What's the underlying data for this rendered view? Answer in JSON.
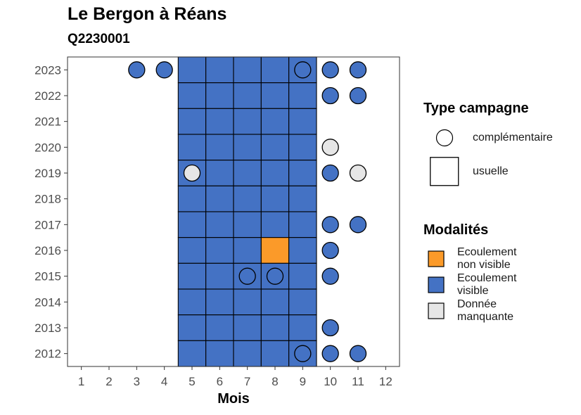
{
  "chart_data": {
    "type": "heatmap",
    "title": "Le Bergon à Réans",
    "subtitle": "Q2230001",
    "xlabel": "Mois",
    "ylabel": "",
    "x_ticks": [
      1,
      2,
      3,
      4,
      5,
      6,
      7,
      8,
      9,
      10,
      11,
      12
    ],
    "y_ticks": [
      2012,
      2013,
      2014,
      2015,
      2016,
      2017,
      2018,
      2019,
      2020,
      2021,
      2022,
      2023
    ],
    "xlim": [
      0.5,
      12.5
    ],
    "ylim": [
      2011.5,
      2023.5
    ],
    "grid": false,
    "colors": {
      "Ecoulement non visible": "#fb9a29",
      "Ecoulement visible": "#4472c4",
      "Donnée manquante": "#e6e6e6"
    },
    "usual_campaign_months": [
      5,
      6,
      7,
      8,
      9
    ],
    "observations": [
      {
        "year": 2023,
        "month": 3,
        "campaign": "complémentaire",
        "modalite": "Ecoulement visible"
      },
      {
        "year": 2023,
        "month": 4,
        "campaign": "complémentaire",
        "modalite": "Ecoulement visible"
      },
      {
        "year": 2023,
        "month": 5,
        "campaign": "usuelle",
        "modalite": "Ecoulement visible"
      },
      {
        "year": 2023,
        "month": 6,
        "campaign": "usuelle",
        "modalite": "Ecoulement visible"
      },
      {
        "year": 2023,
        "month": 7,
        "campaign": "usuelle",
        "modalite": "Ecoulement visible"
      },
      {
        "year": 2023,
        "month": 8,
        "campaign": "usuelle",
        "modalite": "Ecoulement visible"
      },
      {
        "year": 2023,
        "month": 9,
        "campaign": "usuelle",
        "modalite": "Ecoulement visible"
      },
      {
        "year": 2023,
        "month": 9,
        "campaign": "complémentaire",
        "modalite": "Ecoulement visible"
      },
      {
        "year": 2023,
        "month": 10,
        "campaign": "complémentaire",
        "modalite": "Ecoulement visible"
      },
      {
        "year": 2023,
        "month": 11,
        "campaign": "complémentaire",
        "modalite": "Ecoulement visible"
      },
      {
        "year": 2022,
        "month": 5,
        "campaign": "usuelle",
        "modalite": "Ecoulement visible"
      },
      {
        "year": 2022,
        "month": 6,
        "campaign": "usuelle",
        "modalite": "Ecoulement visible"
      },
      {
        "year": 2022,
        "month": 7,
        "campaign": "usuelle",
        "modalite": "Ecoulement visible"
      },
      {
        "year": 2022,
        "month": 8,
        "campaign": "usuelle",
        "modalite": "Ecoulement visible"
      },
      {
        "year": 2022,
        "month": 9,
        "campaign": "usuelle",
        "modalite": "Ecoulement visible"
      },
      {
        "year": 2022,
        "month": 10,
        "campaign": "complémentaire",
        "modalite": "Ecoulement visible"
      },
      {
        "year": 2022,
        "month": 11,
        "campaign": "complémentaire",
        "modalite": "Ecoulement visible"
      },
      {
        "year": 2021,
        "month": 5,
        "campaign": "usuelle",
        "modalite": "Ecoulement visible"
      },
      {
        "year": 2021,
        "month": 6,
        "campaign": "usuelle",
        "modalite": "Ecoulement visible"
      },
      {
        "year": 2021,
        "month": 7,
        "campaign": "usuelle",
        "modalite": "Ecoulement visible"
      },
      {
        "year": 2021,
        "month": 8,
        "campaign": "usuelle",
        "modalite": "Ecoulement visible"
      },
      {
        "year": 2021,
        "month": 9,
        "campaign": "usuelle",
        "modalite": "Ecoulement visible"
      },
      {
        "year": 2020,
        "month": 5,
        "campaign": "usuelle",
        "modalite": "Ecoulement visible"
      },
      {
        "year": 2020,
        "month": 6,
        "campaign": "usuelle",
        "modalite": "Ecoulement visible"
      },
      {
        "year": 2020,
        "month": 7,
        "campaign": "usuelle",
        "modalite": "Ecoulement visible"
      },
      {
        "year": 2020,
        "month": 8,
        "campaign": "usuelle",
        "modalite": "Ecoulement visible"
      },
      {
        "year": 2020,
        "month": 9,
        "campaign": "usuelle",
        "modalite": "Ecoulement visible"
      },
      {
        "year": 2020,
        "month": 10,
        "campaign": "complémentaire",
        "modalite": "Donnée manquante"
      },
      {
        "year": 2019,
        "month": 5,
        "campaign": "usuelle",
        "modalite": "Ecoulement visible"
      },
      {
        "year": 2019,
        "month": 5,
        "campaign": "complémentaire",
        "modalite": "Donnée manquante"
      },
      {
        "year": 2019,
        "month": 6,
        "campaign": "usuelle",
        "modalite": "Ecoulement visible"
      },
      {
        "year": 2019,
        "month": 7,
        "campaign": "usuelle",
        "modalite": "Ecoulement visible"
      },
      {
        "year": 2019,
        "month": 8,
        "campaign": "usuelle",
        "modalite": "Ecoulement visible"
      },
      {
        "year": 2019,
        "month": 9,
        "campaign": "usuelle",
        "modalite": "Ecoulement visible"
      },
      {
        "year": 2019,
        "month": 10,
        "campaign": "complémentaire",
        "modalite": "Ecoulement visible"
      },
      {
        "year": 2019,
        "month": 11,
        "campaign": "complémentaire",
        "modalite": "Donnée manquante"
      },
      {
        "year": 2018,
        "month": 5,
        "campaign": "usuelle",
        "modalite": "Ecoulement visible"
      },
      {
        "year": 2018,
        "month": 6,
        "campaign": "usuelle",
        "modalite": "Ecoulement visible"
      },
      {
        "year": 2018,
        "month": 7,
        "campaign": "usuelle",
        "modalite": "Ecoulement visible"
      },
      {
        "year": 2018,
        "month": 8,
        "campaign": "usuelle",
        "modalite": "Ecoulement visible"
      },
      {
        "year": 2018,
        "month": 9,
        "campaign": "usuelle",
        "modalite": "Ecoulement visible"
      },
      {
        "year": 2017,
        "month": 5,
        "campaign": "usuelle",
        "modalite": "Ecoulement visible"
      },
      {
        "year": 2017,
        "month": 6,
        "campaign": "usuelle",
        "modalite": "Ecoulement visible"
      },
      {
        "year": 2017,
        "month": 7,
        "campaign": "usuelle",
        "modalite": "Ecoulement visible"
      },
      {
        "year": 2017,
        "month": 8,
        "campaign": "usuelle",
        "modalite": "Ecoulement visible"
      },
      {
        "year": 2017,
        "month": 9,
        "campaign": "usuelle",
        "modalite": "Ecoulement visible"
      },
      {
        "year": 2017,
        "month": 10,
        "campaign": "complémentaire",
        "modalite": "Ecoulement visible"
      },
      {
        "year": 2017,
        "month": 11,
        "campaign": "complémentaire",
        "modalite": "Ecoulement visible"
      },
      {
        "year": 2016,
        "month": 5,
        "campaign": "usuelle",
        "modalite": "Ecoulement visible"
      },
      {
        "year": 2016,
        "month": 6,
        "campaign": "usuelle",
        "modalite": "Ecoulement visible"
      },
      {
        "year": 2016,
        "month": 7,
        "campaign": "usuelle",
        "modalite": "Ecoulement visible"
      },
      {
        "year": 2016,
        "month": 8,
        "campaign": "usuelle",
        "modalite": "Ecoulement non visible"
      },
      {
        "year": 2016,
        "month": 9,
        "campaign": "usuelle",
        "modalite": "Ecoulement visible"
      },
      {
        "year": 2016,
        "month": 10,
        "campaign": "complémentaire",
        "modalite": "Ecoulement visible"
      },
      {
        "year": 2015,
        "month": 5,
        "campaign": "usuelle",
        "modalite": "Ecoulement visible"
      },
      {
        "year": 2015,
        "month": 6,
        "campaign": "usuelle",
        "modalite": "Ecoulement visible"
      },
      {
        "year": 2015,
        "month": 7,
        "campaign": "usuelle",
        "modalite": "Ecoulement visible"
      },
      {
        "year": 2015,
        "month": 7,
        "campaign": "complémentaire",
        "modalite": "Ecoulement visible"
      },
      {
        "year": 2015,
        "month": 8,
        "campaign": "usuelle",
        "modalite": "Ecoulement visible"
      },
      {
        "year": 2015,
        "month": 8,
        "campaign": "complémentaire",
        "modalite": "Ecoulement visible"
      },
      {
        "year": 2015,
        "month": 9,
        "campaign": "usuelle",
        "modalite": "Ecoulement visible"
      },
      {
        "year": 2015,
        "month": 10,
        "campaign": "complémentaire",
        "modalite": "Ecoulement visible"
      },
      {
        "year": 2014,
        "month": 5,
        "campaign": "usuelle",
        "modalite": "Ecoulement visible"
      },
      {
        "year": 2014,
        "month": 6,
        "campaign": "usuelle",
        "modalite": "Ecoulement visible"
      },
      {
        "year": 2014,
        "month": 7,
        "campaign": "usuelle",
        "modalite": "Ecoulement visible"
      },
      {
        "year": 2014,
        "month": 8,
        "campaign": "usuelle",
        "modalite": "Ecoulement visible"
      },
      {
        "year": 2014,
        "month": 9,
        "campaign": "usuelle",
        "modalite": "Ecoulement visible"
      },
      {
        "year": 2013,
        "month": 5,
        "campaign": "usuelle",
        "modalite": "Ecoulement visible"
      },
      {
        "year": 2013,
        "month": 6,
        "campaign": "usuelle",
        "modalite": "Ecoulement visible"
      },
      {
        "year": 2013,
        "month": 7,
        "campaign": "usuelle",
        "modalite": "Ecoulement visible"
      },
      {
        "year": 2013,
        "month": 8,
        "campaign": "usuelle",
        "modalite": "Ecoulement visible"
      },
      {
        "year": 2013,
        "month": 9,
        "campaign": "usuelle",
        "modalite": "Ecoulement visible"
      },
      {
        "year": 2013,
        "month": 10,
        "campaign": "complémentaire",
        "modalite": "Ecoulement visible"
      },
      {
        "year": 2012,
        "month": 5,
        "campaign": "usuelle",
        "modalite": "Ecoulement visible"
      },
      {
        "year": 2012,
        "month": 6,
        "campaign": "usuelle",
        "modalite": "Ecoulement visible"
      },
      {
        "year": 2012,
        "month": 7,
        "campaign": "usuelle",
        "modalite": "Ecoulement visible"
      },
      {
        "year": 2012,
        "month": 8,
        "campaign": "usuelle",
        "modalite": "Ecoulement visible"
      },
      {
        "year": 2012,
        "month": 9,
        "campaign": "usuelle",
        "modalite": "Ecoulement visible"
      },
      {
        "year": 2012,
        "month": 9,
        "campaign": "complémentaire",
        "modalite": "Ecoulement visible"
      },
      {
        "year": 2012,
        "month": 10,
        "campaign": "complémentaire",
        "modalite": "Ecoulement visible"
      },
      {
        "year": 2012,
        "month": 11,
        "campaign": "complémentaire",
        "modalite": "Ecoulement visible"
      }
    ],
    "legend": {
      "placement": "right",
      "type_title": "Type campagne",
      "type_items": [
        {
          "label": "complémentaire",
          "shape": "circle"
        },
        {
          "label": "usuelle",
          "shape": "square"
        }
      ],
      "modalite_title": "Modalités",
      "modalite_items": [
        {
          "label_line1": "Ecoulement",
          "label_line2": "non visible",
          "color": "#fb9a29"
        },
        {
          "label_line1": "Ecoulement",
          "label_line2": "visible",
          "color": "#4472c4"
        },
        {
          "label_line1": "Donnée",
          "label_line2": "manquante",
          "color": "#e6e6e6"
        }
      ]
    }
  }
}
